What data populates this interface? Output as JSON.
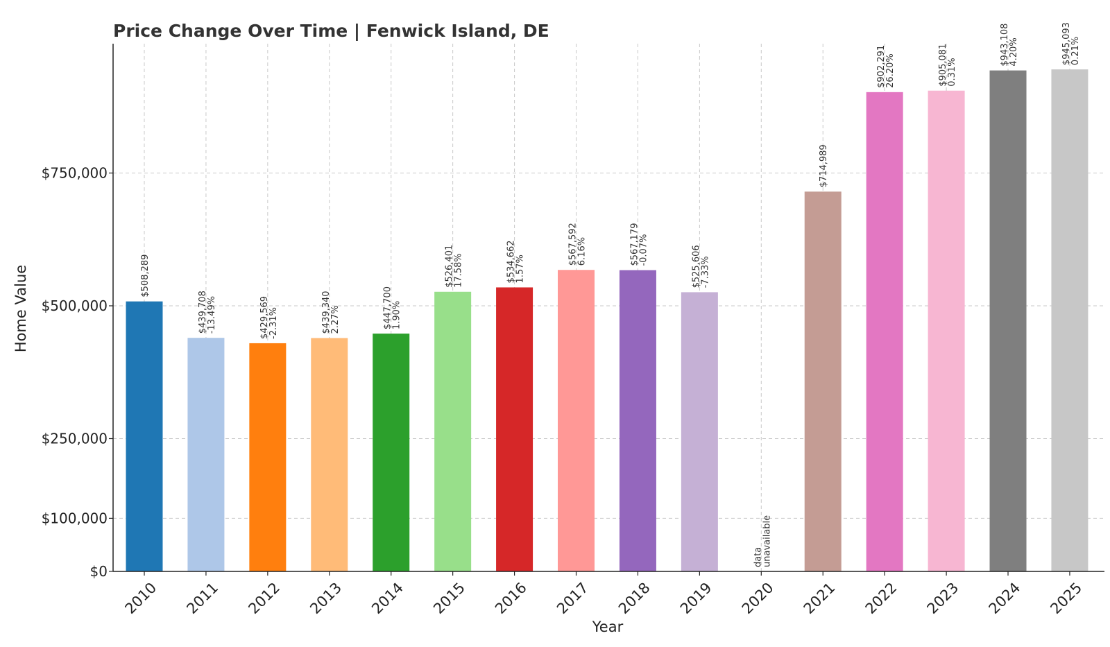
{
  "chart_data": {
    "type": "bar",
    "title": "Price Change Over Time | Fenwick Island, DE",
    "xlabel": "Year",
    "ylabel": "Home Value",
    "ylim": [
      0,
      990000
    ],
    "ytick_values": [
      0,
      100000,
      250000,
      500000,
      750000
    ],
    "ytick_labels": [
      "$0",
      "$100,000",
      "$250,000",
      "$500,000",
      "$750,000"
    ],
    "grid": true,
    "categories": [
      "2010",
      "2011",
      "2012",
      "2013",
      "2014",
      "2015",
      "2016",
      "2017",
      "2018",
      "2019",
      "2020",
      "2021",
      "2022",
      "2023",
      "2024",
      "2025"
    ],
    "values": [
      508289,
      439708,
      429569,
      439340,
      447700,
      526401,
      534662,
      567592,
      567179,
      525606,
      null,
      714989,
      902291,
      905081,
      943108,
      945093
    ],
    "value_labels": [
      "$508,289",
      "$439,708",
      "$429,569",
      "$439,340",
      "$447,700",
      "$526,401",
      "$534,662",
      "$567,592",
      "$567,179",
      "$525,606",
      "data",
      "$714,989",
      "$902,291",
      "$905,081",
      "$943,108",
      "$945,093"
    ],
    "change_labels": [
      "",
      "-13.49%",
      "-2.31%",
      "2.27%",
      "1.90%",
      "17.58%",
      "1.57%",
      "6.16%",
      "-0.07%",
      "-7.33%",
      "unavailable",
      "",
      "26.20%",
      "0.31%",
      "4.20%",
      "0.21%"
    ],
    "colors": [
      "#1f77b4",
      "#aec7e8",
      "#ff7f0e",
      "#ffbb78",
      "#2ca02c",
      "#98df8a",
      "#d62728",
      "#ff9896",
      "#9467bd",
      "#c5b0d5",
      "#8c564b",
      "#c49c94",
      "#e377c2",
      "#f7b6d2",
      "#7f7f7f",
      "#c7c7c7"
    ]
  }
}
